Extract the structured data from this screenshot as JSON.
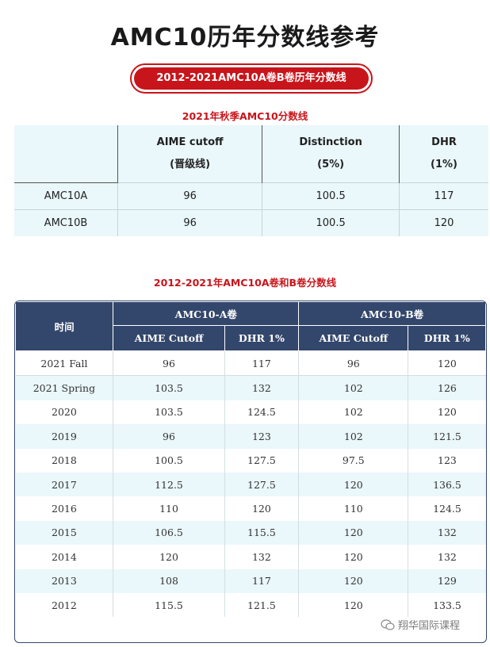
{
  "title": "AMC10历年分数线参考",
  "banner": "2012-2021AMC10A卷B卷历年分数线",
  "table1": {
    "subtitle": "2021年秋季AMC10分数线",
    "headers": [
      {
        "line1": "AIME cutoff",
        "line2": "(晋级线)"
      },
      {
        "line1": "Distinction",
        "line2": "(5%)"
      },
      {
        "line1": "DHR",
        "line2": "(1%)"
      }
    ],
    "rows": [
      {
        "label": "AMC10A",
        "aime": "96",
        "distinction": "100.5",
        "dhr": "117"
      },
      {
        "label": "AMC10B",
        "aime": "96",
        "distinction": "100.5",
        "dhr": "120"
      }
    ]
  },
  "table2": {
    "subtitle": "2012-2021年AMC10A卷和B卷分数线",
    "time_header": "时间",
    "group_a": "AMC10-A卷",
    "group_b": "AMC10-B卷",
    "sub_headers": [
      "AIME Cutoff",
      "DHR 1%",
      "AIME Cutoff",
      "DHR 1%"
    ],
    "rows": [
      [
        "2021 Fall",
        "96",
        "117",
        "96",
        "120"
      ],
      [
        "2021 Spring",
        "103.5",
        "132",
        "102",
        "126"
      ],
      [
        "2020",
        "103.5",
        "124.5",
        "102",
        "120"
      ],
      [
        "2019",
        "96",
        "123",
        "102",
        "121.5"
      ],
      [
        "2018",
        "100.5",
        "127.5",
        "97.5",
        "123"
      ],
      [
        "2017",
        "112.5",
        "127.5",
        "120",
        "136.5"
      ],
      [
        "2016",
        "110",
        "120",
        "110",
        "124.5"
      ],
      [
        "2015",
        "106.5",
        "115.5",
        "120",
        "132"
      ],
      [
        "2014",
        "120",
        "132",
        "120",
        "132"
      ],
      [
        "2013",
        "108",
        "117",
        "120",
        "129"
      ],
      [
        "2012",
        "115.5",
        "121.5",
        "120",
        "133.5"
      ]
    ]
  },
  "watermark": {
    "text": "翔华国际课程",
    "icon": "wechat-icon"
  }
}
